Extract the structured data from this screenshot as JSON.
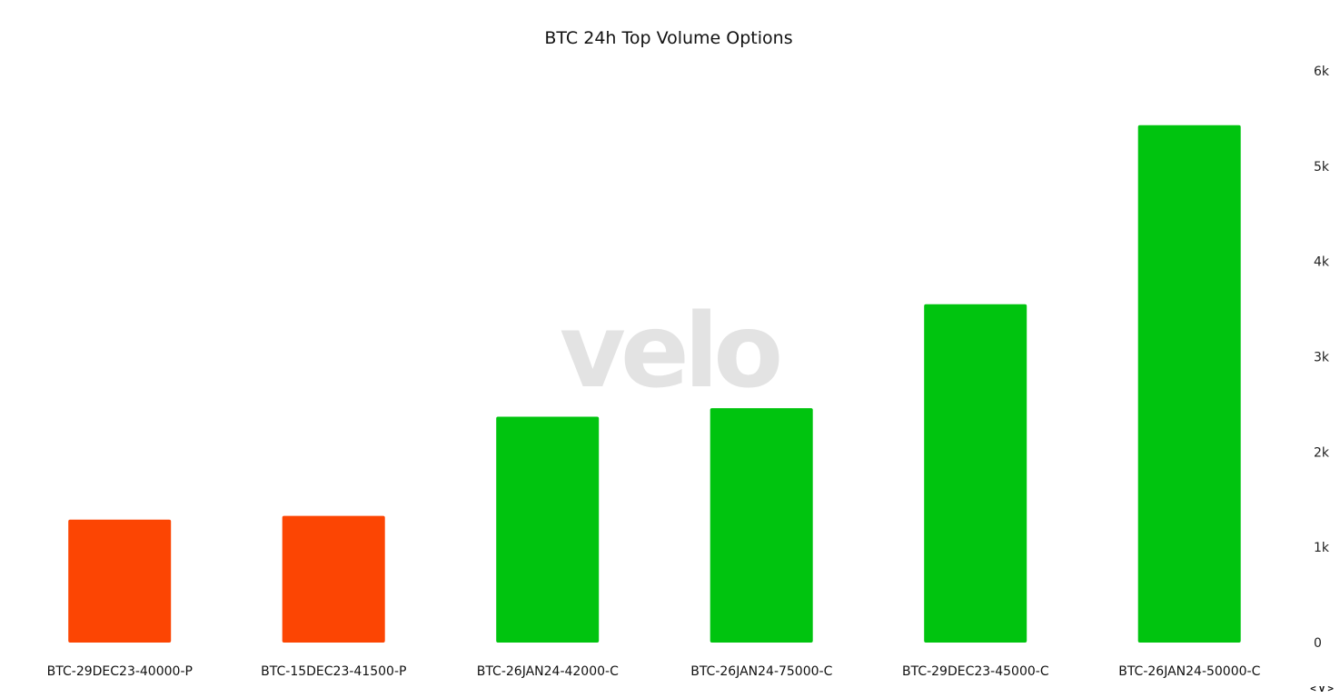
{
  "chart_data": {
    "type": "bar",
    "title": "BTC 24h Top Volume Options",
    "categories": [
      "BTC-29DEC23-40000-P",
      "BTC-15DEC23-41500-P",
      "BTC-26JAN24-42000-C",
      "BTC-26JAN24-75000-C",
      "BTC-29DEC23-45000-C",
      "BTC-26JAN24-50000-C"
    ],
    "values": [
      1290,
      1330,
      2370,
      2460,
      3550,
      5430
    ],
    "bar_colors": [
      "#fc4503",
      "#fc4503",
      "#00c40f",
      "#00c40f",
      "#00c40f",
      "#00c40f"
    ],
    "ylim": [
      0,
      6000
    ],
    "yticks": [
      0,
      1000,
      2000,
      3000,
      4000,
      5000,
      6000
    ],
    "ytick_labels": [
      "0",
      "1k",
      "2k",
      "3k",
      "4k",
      "5k",
      "6k"
    ],
    "y_axis_side": "right",
    "grid": false,
    "xlabel": "",
    "ylabel": ""
  },
  "watermark": "velo",
  "nav": {
    "prev": "<",
    "toggle": "v",
    "next": ">"
  }
}
